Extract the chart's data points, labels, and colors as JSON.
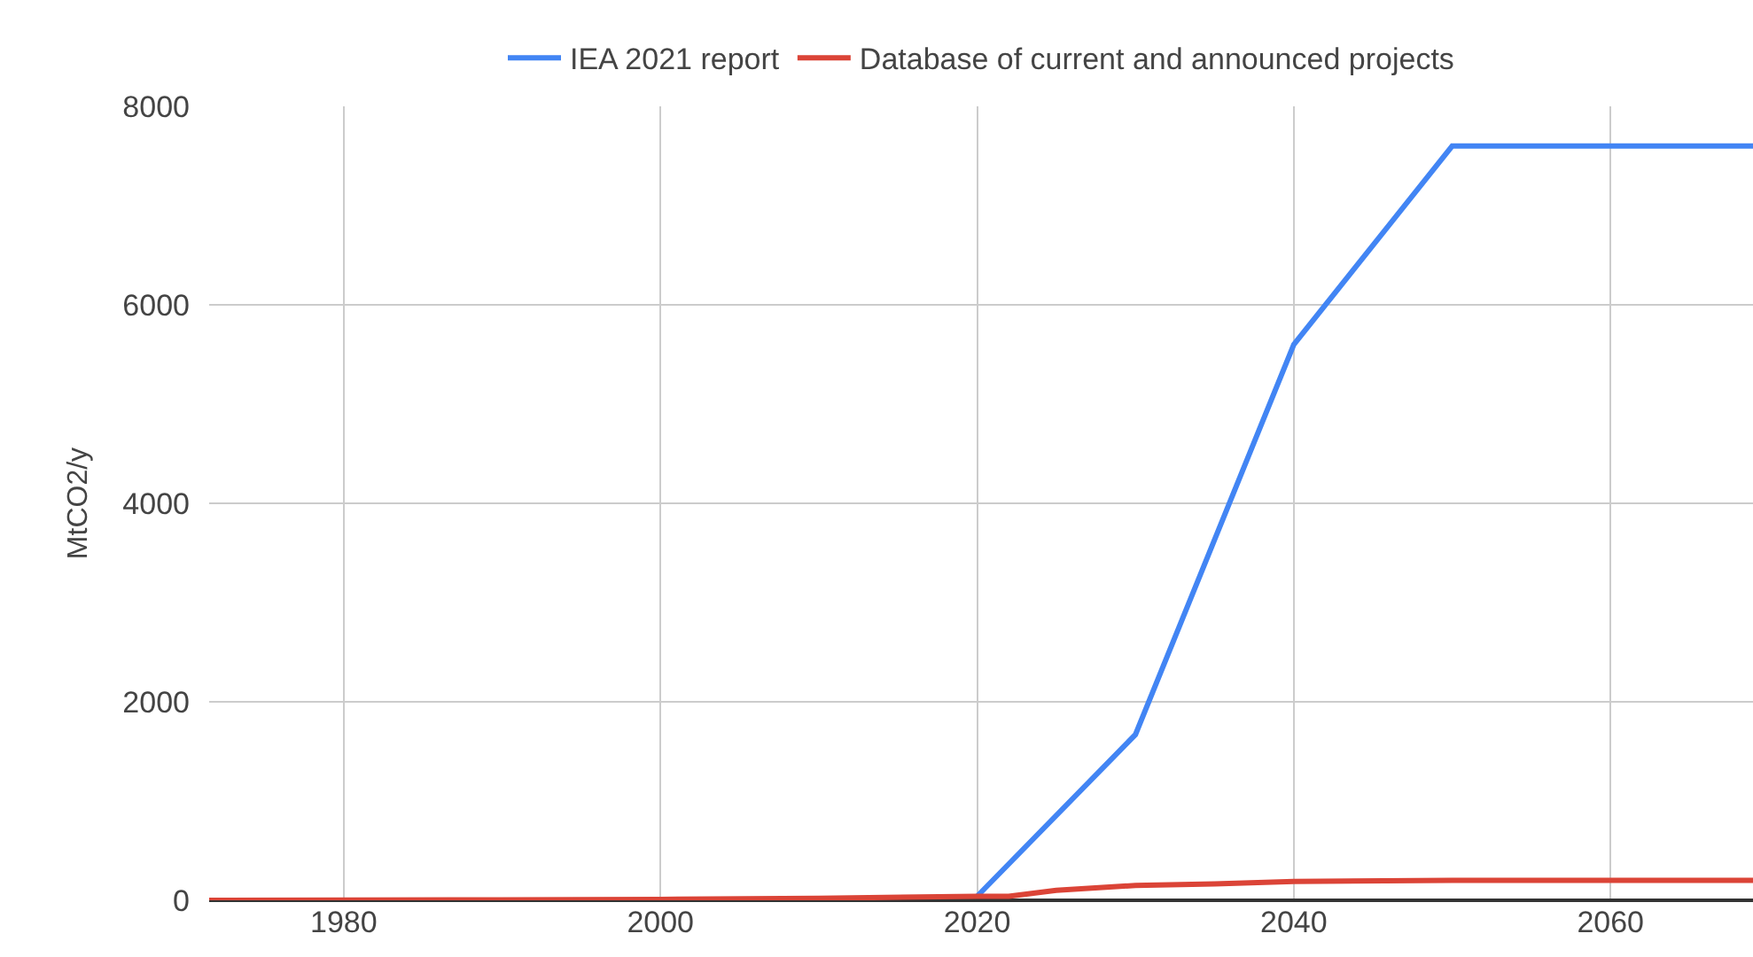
{
  "chart_data": {
    "type": "line",
    "ylabel": "MtCO2/y",
    "xlim": [
      1971.5,
      2069
    ],
    "ylim": [
      0,
      8000
    ],
    "xticks": [
      1980,
      2000,
      2020,
      2040,
      2060
    ],
    "yticks": [
      0,
      2000,
      4000,
      6000,
      8000
    ],
    "grid": true,
    "legend": "top",
    "marker": "none",
    "line_style": "solid",
    "series": [
      {
        "name": "IEA 2021 report",
        "color": "#4285f4",
        "x": [
          2020,
          2030,
          2040,
          2050,
          2069
        ],
        "values": [
          40,
          1670,
          5600,
          7600,
          7600
        ]
      },
      {
        "name": "Database of current and announced projects",
        "color": "#db4437",
        "x": [
          1971.5,
          1990,
          2000,
          2010,
          2020,
          2022,
          2025,
          2030,
          2035,
          2040,
          2050,
          2069
        ],
        "values": [
          0,
          5,
          10,
          20,
          40,
          40,
          100,
          150,
          165,
          190,
          200,
          200
        ]
      }
    ]
  }
}
